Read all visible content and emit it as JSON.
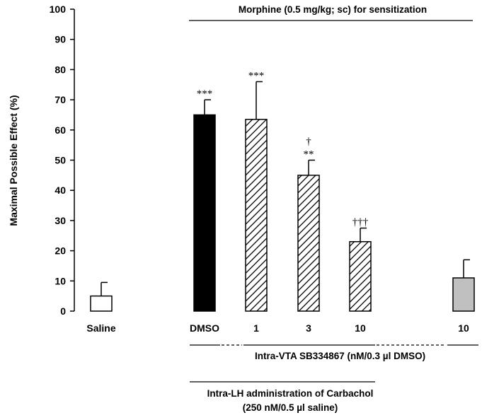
{
  "chart_data": {
    "type": "bar",
    "ylabel": "Maximal Possible Effect (%)",
    "ylim": [
      0,
      100
    ],
    "yticks": [
      0,
      10,
      20,
      30,
      40,
      50,
      60,
      70,
      80,
      90,
      100
    ],
    "categories": [
      "Saline",
      "DMSO",
      "1",
      "3",
      "10",
      "10"
    ],
    "values": [
      5,
      65,
      63.5,
      45,
      23,
      11
    ],
    "errors": [
      4.5,
      5,
      12.5,
      5,
      4.5,
      6
    ],
    "bar_styles": [
      "white",
      "black",
      "hatched",
      "hatched",
      "hatched",
      "gray"
    ],
    "significance": [
      [
        "",
        ""
      ],
      [
        "",
        "***"
      ],
      [
        "",
        "***"
      ],
      [
        "†",
        "**"
      ],
      [
        "",
        "†††"
      ],
      [
        "",
        ""
      ]
    ],
    "annotations": {
      "morphine": "Morphine (0.5 mg/kg; sc) for sensitization",
      "intra_vta": "Intra-VTA  SB334867 (nM/0.3 µl DMSO)",
      "intra_lh_line1": "Intra-LH administration of Carbachol",
      "intra_lh_line2": "(250 nM/0.5 µl saline)"
    },
    "colors": {
      "black_bar": "#000000",
      "gray_bar": "#c0c0c0",
      "white_bar": "#ffffff"
    },
    "grid": false
  }
}
